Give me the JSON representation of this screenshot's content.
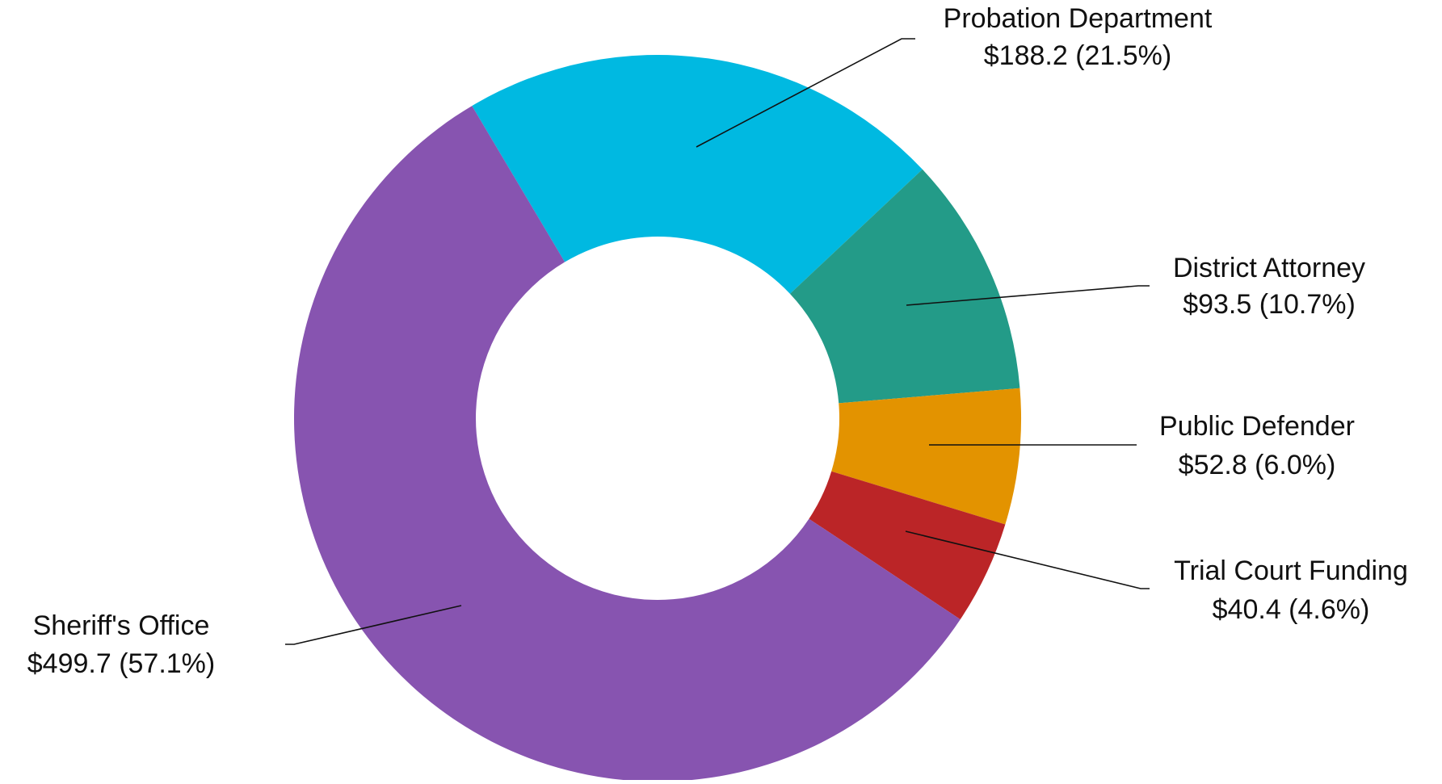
{
  "chart_data": {
    "type": "donut",
    "categories": [
      "Probation Department",
      "District Attorney",
      "Public Defender",
      "Trial Court Funding",
      "Sheriff's Office"
    ],
    "values": [
      188.2,
      93.5,
      52.8,
      40.4,
      499.7
    ],
    "value_labels": [
      "$188.2 (21.5%)",
      "$93.5 (10.7%)",
      "$52.8 (6.0%)",
      "$40.4 (4.6%)",
      "$499.7 (57.1%)"
    ],
    "colors": [
      "#00b9e1",
      "#239b88",
      "#e39300",
      "#bb2527",
      "#8754b0"
    ]
  }
}
